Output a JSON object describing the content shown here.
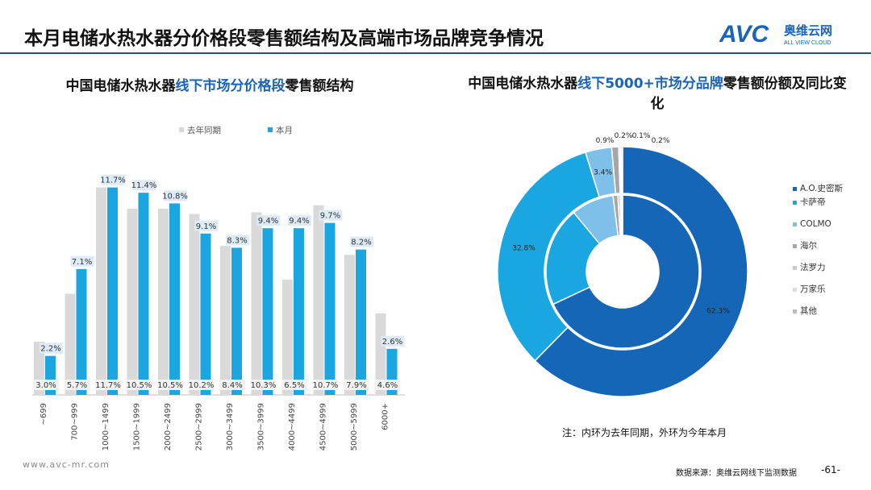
{
  "header": {
    "title": "本月电储水热水器分价格段零售额结构及高端市场品牌竞争情况",
    "logo_text": "AVC",
    "logo_cn": "奥维云网",
    "logo_en": "ALL VIEW CLOUD"
  },
  "left_title": {
    "pre": "中国电储水热水器",
    "highlight": "线下市场分价格段",
    "post": "零售额结构"
  },
  "right_title": {
    "pre": "中国电储水热水器",
    "highlight": "线下5000+市场分品牌",
    "post": "零售额份额及同比变化"
  },
  "colors": {
    "last_year": "#d9d9d9",
    "this_month": "#1aa6e0",
    "accent": "#1a64b8",
    "header_rule": "#1f4e8c",
    "donut": [
      "#1566b7",
      "#1aa6e0",
      "#7fc0ea",
      "#a6a6a6",
      "#c9c9c9",
      "#dcdcdc",
      "#bdbdbd"
    ]
  },
  "chart_data": [
    {
      "type": "bar",
      "categories": [
        "~699",
        "700~999",
        "1000~1499",
        "1500~1999",
        "2000~2499",
        "2500~2999",
        "3000~3499",
        "3500~3999",
        "4000~4499",
        "4500~4999",
        "5000~5999",
        "6000+"
      ],
      "series": [
        {
          "name": "去年同期",
          "values": [
            3.0,
            5.7,
            11.7,
            10.5,
            10.5,
            10.2,
            8.4,
            10.3,
            6.5,
            10.7,
            7.9,
            4.6
          ],
          "labels": [
            "3.0%",
            "5.7%",
            "11.7%",
            "10.5%",
            "10.5%",
            "10.2%",
            "8.4%",
            "10.3%",
            "6.5%",
            "10.7%",
            "7.9%",
            "4.6%"
          ]
        },
        {
          "name": "本月",
          "values": [
            2.2,
            7.1,
            11.7,
            11.4,
            10.8,
            9.1,
            8.3,
            9.4,
            9.4,
            9.7,
            8.2,
            2.6
          ],
          "labels": [
            "2.2%",
            "7.1%",
            "11.7%",
            "11.4%",
            "10.8%",
            "9.1%",
            "8.3%",
            "9.4%",
            "9.4%",
            "9.7%",
            "8.2%",
            "2.6%"
          ]
        }
      ],
      "ylim": [
        0,
        12
      ],
      "legend_position": "top"
    },
    {
      "type": "pie",
      "variant": "donut-two-ring",
      "categories": [
        "A.O.史密斯",
        "卡萨帝",
        "COLMO",
        "海尔",
        "法罗力",
        "万家乐",
        "其他"
      ],
      "outer_series": {
        "values": [
          62.3,
          32.8,
          3.4,
          0.9,
          0.2,
          0.1,
          0.2
        ],
        "labels": [
          "62.3%",
          "32.8%",
          "3.4%",
          "0.9%",
          "0.2%",
          "0.1%",
          "0.2%"
        ]
      },
      "inner_series": {
        "values": [
          68.0,
          21.0,
          9.0,
          1.0,
          0.5,
          0.3,
          0.2
        ]
      },
      "legend_position": "right"
    }
  ],
  "legend_names": [
    "A.O.史密斯",
    "卡萨帝",
    "COLMO",
    "海尔",
    "法罗力",
    "万家乐",
    "其他"
  ],
  "note": "注：内环为去年同期，外环为今年本月",
  "footer": {
    "website": "www.avc-mr.com",
    "source": "数据来源：奥维云网线下监测数据",
    "page": "-61-"
  }
}
